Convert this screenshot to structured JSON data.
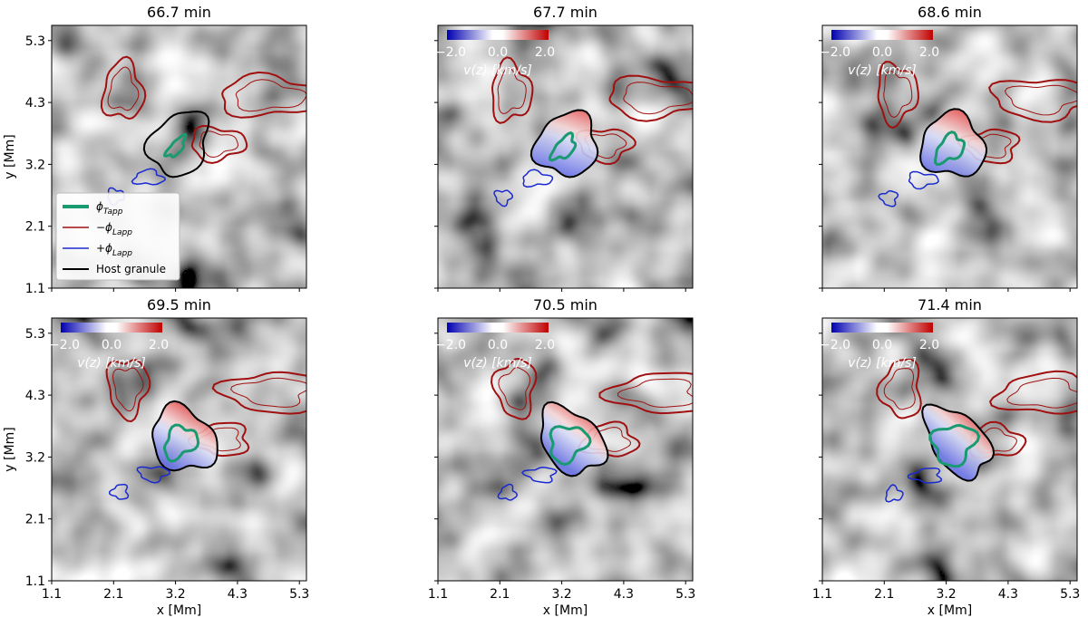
{
  "panels": [
    {
      "title": "66.7 min",
      "colorbar": false,
      "legend": true
    },
    {
      "title": "67.7 min",
      "colorbar": true,
      "legend": false
    },
    {
      "title": "68.6 min",
      "colorbar": true,
      "legend": false
    },
    {
      "title": "69.5 min",
      "colorbar": true,
      "legend": false
    },
    {
      "title": "70.5 min",
      "colorbar": true,
      "legend": false
    },
    {
      "title": "71.4 min",
      "colorbar": true,
      "legend": false
    }
  ],
  "x_axis": {
    "label": "x [Mm]",
    "ticks": [
      "1.1",
      "2.1",
      "3.2",
      "4.3",
      "5.3"
    ]
  },
  "y_axis": {
    "label": "y [Mm]",
    "ticks": [
      "1.1",
      "2.1",
      "3.2",
      "4.3",
      "5.3"
    ]
  },
  "colorbar": {
    "ticks": [
      "−2.0",
      "0.0",
      "2.0"
    ],
    "label": "v(z) [km/s]"
  },
  "legend": [
    {
      "text": "ϕ",
      "sub": "Tapp"
    },
    {
      "text": "−ϕ",
      "sub": "Lapp"
    },
    {
      "text": "+ϕ",
      "sub": "Lapp"
    },
    {
      "text": "Host granule",
      "sub": ""
    }
  ]
}
